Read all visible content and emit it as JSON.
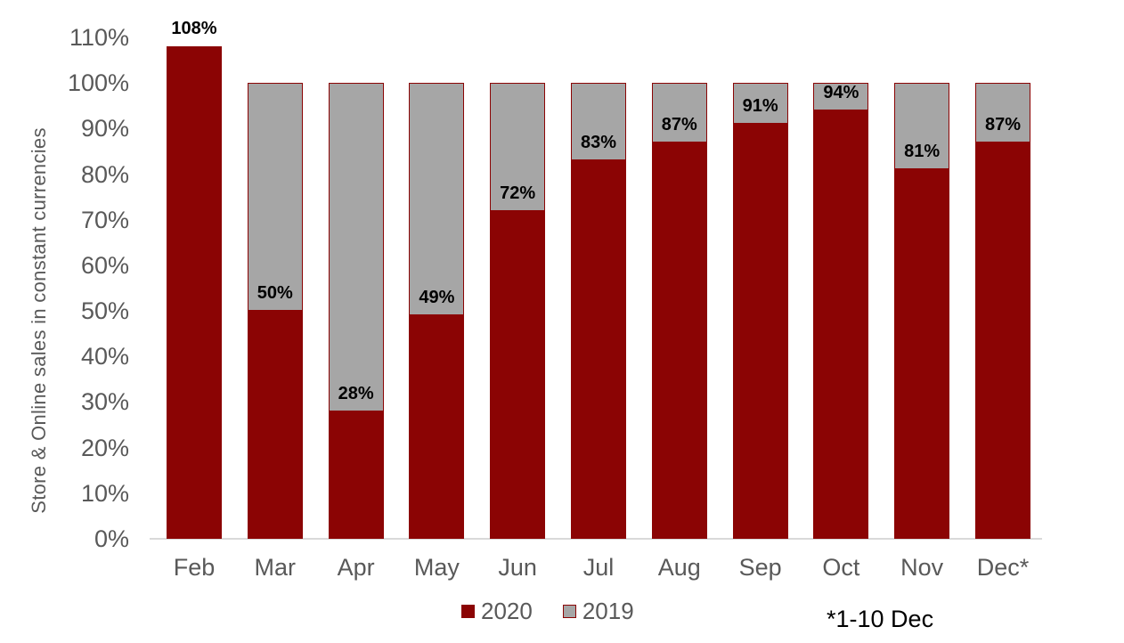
{
  "chart_data": {
    "type": "bar",
    "stacked": true,
    "title": "",
    "xlabel": "",
    "ylabel": "Store & Online sales in constant currencies",
    "categories": [
      "Feb",
      "Mar",
      "Apr",
      "May",
      "Jun",
      "Jul",
      "Aug",
      "Sep",
      "Oct",
      "Nov",
      "Dec*"
    ],
    "series": [
      {
        "name": "2020",
        "color": "#8B0404",
        "values": [
          108,
          50,
          28,
          49,
          72,
          83,
          87,
          91,
          94,
          81,
          87
        ]
      },
      {
        "name": "2019",
        "color": "#A6A6A6",
        "border": "#8B0404",
        "values": [
          100,
          100,
          100,
          100,
          100,
          100,
          100,
          100,
          100,
          100,
          100
        ],
        "render": "remainder above 2020 bar up to 100%"
      }
    ],
    "labels": [
      "108%",
      "50%",
      "28%",
      "49%",
      "72%",
      "83%",
      "87%",
      "91%",
      "94%",
      "81%",
      "87%"
    ],
    "ylim": [
      0,
      110
    ],
    "ytick_step": 10,
    "yticks": [
      "0%",
      "10%",
      "20%",
      "30%",
      "40%",
      "50%",
      "60%",
      "70%",
      "80%",
      "90%",
      "100%",
      "110%"
    ],
    "grid": false,
    "legend": {
      "position": "bottom",
      "entries": [
        "2020",
        "2019"
      ]
    },
    "footnote": "*1-10 Dec",
    "colors": {
      "axis_text": "#595959",
      "data_label": "#000000",
      "axis_line": "#D9D9D9",
      "background": "#FFFFFF"
    }
  }
}
